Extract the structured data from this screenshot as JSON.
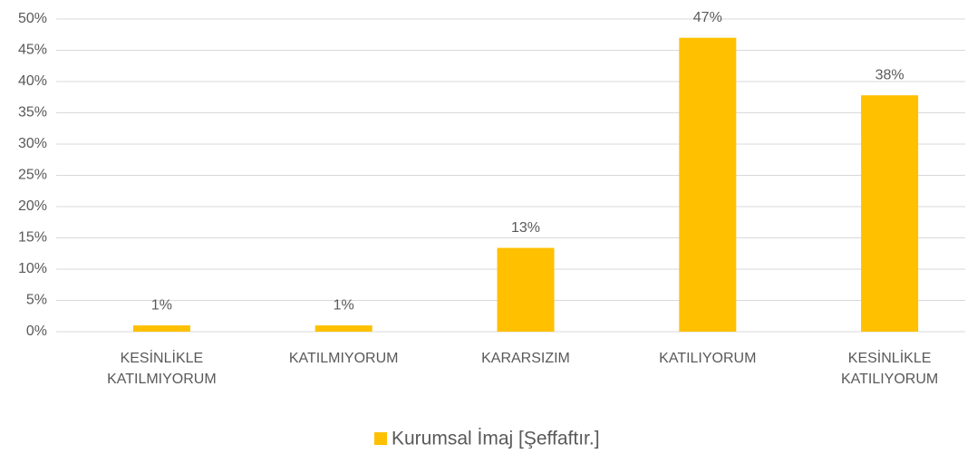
{
  "chart_data": {
    "type": "bar",
    "categories": [
      "KESİNLİKLE KATILMIYORUM",
      "KATILMIYORUM",
      "KARARSIZIM",
      "KATILIYORUM",
      "KESİNLİKLE KATILIYORUM"
    ],
    "series": [
      {
        "name": "Kurumsal İmaj [Şeffaftır.]",
        "color": "#ffc000",
        "values": [
          1,
          1,
          13.4,
          47,
          37.8
        ],
        "value_labels": [
          "1%",
          "1%",
          "13%",
          "47%",
          "38%"
        ]
      }
    ],
    "ylim": [
      0,
      50
    ],
    "yticks": [
      {
        "value": 0,
        "label": "0%"
      },
      {
        "value": 5,
        "label": "5%"
      },
      {
        "value": 10,
        "label": "10%"
      },
      {
        "value": 15,
        "label": "15%"
      },
      {
        "value": 20,
        "label": "20%"
      },
      {
        "value": 25,
        "label": "25%"
      },
      {
        "value": 30,
        "label": "30%"
      },
      {
        "value": 35,
        "label": "35%"
      },
      {
        "value": 40,
        "label": "40%"
      },
      {
        "value": 45,
        "label": "45%"
      },
      {
        "value": 50,
        "label": "50%"
      }
    ],
    "grid": true,
    "legend": "bottom"
  }
}
